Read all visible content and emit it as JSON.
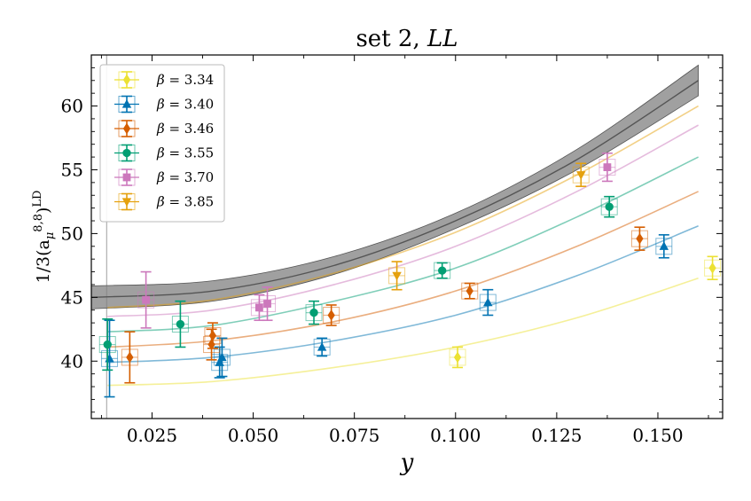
{
  "chart_data": {
    "type": "scatter",
    "title": "set 2, ",
    "title_italic": "LL",
    "xlabel": "y",
    "ylabel_prefix": "1/3(a",
    "ylabel_sub": "μ",
    "ylabel_sup": "8,8",
    "ylabel_suffix": ")",
    "ylabel_tag": "LD",
    "xlim": [
      0.01,
      0.166
    ],
    "ylim": [
      35.5,
      64.0
    ],
    "xticks": [
      {
        "value": 0.025,
        "label": "0.025"
      },
      {
        "value": 0.05,
        "label": "0.050"
      },
      {
        "value": 0.075,
        "label": "0.075"
      },
      {
        "value": 0.1,
        "label": "0.100"
      },
      {
        "value": 0.125,
        "label": "0.125"
      },
      {
        "value": 0.15,
        "label": "0.150"
      }
    ],
    "yticks": [
      {
        "value": 40,
        "label": "40"
      },
      {
        "value": 45,
        "label": "45"
      },
      {
        "value": 50,
        "label": "50"
      },
      {
        "value": 55,
        "label": "55"
      },
      {
        "value": 60,
        "label": "60"
      }
    ],
    "vertical_line_x": 0.0138,
    "continuum_band": {
      "center": [
        {
          "x": 0.01,
          "y": 45.0
        },
        {
          "x": 0.04,
          "y": 45.5
        },
        {
          "x": 0.07,
          "y": 47.5
        },
        {
          "x": 0.1,
          "y": 51.0
        },
        {
          "x": 0.13,
          "y": 55.8
        },
        {
          "x": 0.16,
          "y": 62.0
        }
      ],
      "half_width": [
        0.9,
        0.8,
        0.7,
        0.6,
        0.8,
        1.2
      ],
      "color": "#808080"
    },
    "series": [
      {
        "name": "β = 3.34",
        "beta_symbol": "β",
        "beta_value": " = 3.34",
        "color": "#ece133",
        "marker": "diamond",
        "points": [
          {
            "x": 0.1005,
            "y": 40.3,
            "err": 0.8
          },
          {
            "x": 0.1635,
            "y": 47.3,
            "err": 0.9
          }
        ],
        "fit": [
          {
            "x": 0.014,
            "y": 38.1
          },
          {
            "x": 0.04,
            "y": 38.4
          },
          {
            "x": 0.07,
            "y": 39.5
          },
          {
            "x": 0.1,
            "y": 41.1
          },
          {
            "x": 0.13,
            "y": 43.4
          },
          {
            "x": 0.16,
            "y": 46.5
          }
        ]
      },
      {
        "name": "β = 3.40",
        "beta_symbol": "β",
        "beta_value": " = 3.40",
        "color": "#0173b2",
        "marker": "triangle",
        "points": [
          {
            "x": 0.0145,
            "y": 40.2,
            "err": 3.0
          },
          {
            "x": 0.0417,
            "y": 39.9,
            "err": 1.2
          },
          {
            "x": 0.0423,
            "y": 40.3,
            "err": 1.5
          },
          {
            "x": 0.067,
            "y": 41.1,
            "err": 0.7
          },
          {
            "x": 0.108,
            "y": 44.6,
            "err": 1.0
          },
          {
            "x": 0.1515,
            "y": 49.0,
            "err": 0.9
          }
        ],
        "fit": [
          {
            "x": 0.014,
            "y": 39.9
          },
          {
            "x": 0.04,
            "y": 40.3
          },
          {
            "x": 0.07,
            "y": 41.6
          },
          {
            "x": 0.1,
            "y": 43.6
          },
          {
            "x": 0.13,
            "y": 46.7
          },
          {
            "x": 0.16,
            "y": 50.6
          }
        ]
      },
      {
        "name": "β = 3.46",
        "beta_symbol": "β",
        "beta_value": " = 3.46",
        "color": "#de8f05",
        "marker": "diamond",
        "color_draw": "#d55e00",
        "points": [
          {
            "x": 0.0195,
            "y": 40.3,
            "err": 2.0
          },
          {
            "x": 0.0397,
            "y": 41.3,
            "err": 1.2
          },
          {
            "x": 0.04,
            "y": 42.0,
            "err": 1.0
          },
          {
            "x": 0.0693,
            "y": 43.6,
            "err": 0.8
          },
          {
            "x": 0.1035,
            "y": 45.5,
            "err": 0.6
          },
          {
            "x": 0.1455,
            "y": 49.6,
            "err": 0.9
          }
        ],
        "fit": [
          {
            "x": 0.014,
            "y": 41.1
          },
          {
            "x": 0.04,
            "y": 41.6
          },
          {
            "x": 0.07,
            "y": 43.1
          },
          {
            "x": 0.1,
            "y": 45.5
          },
          {
            "x": 0.13,
            "y": 49.0
          },
          {
            "x": 0.16,
            "y": 53.3
          }
        ]
      },
      {
        "name": "β = 3.55",
        "beta_symbol": "β",
        "beta_value": " = 3.55",
        "color": "#029e73",
        "marker": "circle",
        "points": [
          {
            "x": 0.014,
            "y": 41.3,
            "err": 2.0
          },
          {
            "x": 0.032,
            "y": 42.9,
            "err": 1.8
          },
          {
            "x": 0.065,
            "y": 43.8,
            "err": 0.9
          },
          {
            "x": 0.0967,
            "y": 47.1,
            "err": 0.6
          },
          {
            "x": 0.138,
            "y": 52.1,
            "err": 0.8
          }
        ],
        "fit": [
          {
            "x": 0.014,
            "y": 42.3
          },
          {
            "x": 0.04,
            "y": 42.8
          },
          {
            "x": 0.07,
            "y": 44.7
          },
          {
            "x": 0.1,
            "y": 47.3
          },
          {
            "x": 0.13,
            "y": 51.3
          },
          {
            "x": 0.16,
            "y": 56.0
          }
        ]
      },
      {
        "name": "β = 3.70",
        "beta_symbol": "β",
        "beta_value": " = 3.70",
        "color": "#cc78bc",
        "marker": "square",
        "points": [
          {
            "x": 0.0235,
            "y": 44.8,
            "err": 2.2
          },
          {
            "x": 0.0515,
            "y": 44.2,
            "err": 1.0
          },
          {
            "x": 0.0535,
            "y": 44.5,
            "err": 1.3
          },
          {
            "x": 0.1375,
            "y": 55.2,
            "err": 1.1
          }
        ],
        "fit": [
          {
            "x": 0.014,
            "y": 43.5
          },
          {
            "x": 0.04,
            "y": 44.0
          },
          {
            "x": 0.07,
            "y": 46.0
          },
          {
            "x": 0.1,
            "y": 49.0
          },
          {
            "x": 0.13,
            "y": 53.3
          },
          {
            "x": 0.16,
            "y": 58.5
          }
        ]
      },
      {
        "name": "β = 3.85",
        "beta_symbol": "β",
        "beta_value": " = 3.85",
        "color": "#e5a10e",
        "marker": "triangle-down",
        "points": [
          {
            "x": 0.0855,
            "y": 46.7,
            "err": 1.1
          },
          {
            "x": 0.131,
            "y": 54.6,
            "err": 0.9
          }
        ],
        "fit": [
          {
            "x": 0.014,
            "y": 44.2
          },
          {
            "x": 0.04,
            "y": 44.8
          },
          {
            "x": 0.07,
            "y": 46.9
          },
          {
            "x": 0.1,
            "y": 50.1
          },
          {
            "x": 0.13,
            "y": 54.6
          },
          {
            "x": 0.16,
            "y": 60.0
          }
        ]
      }
    ]
  }
}
